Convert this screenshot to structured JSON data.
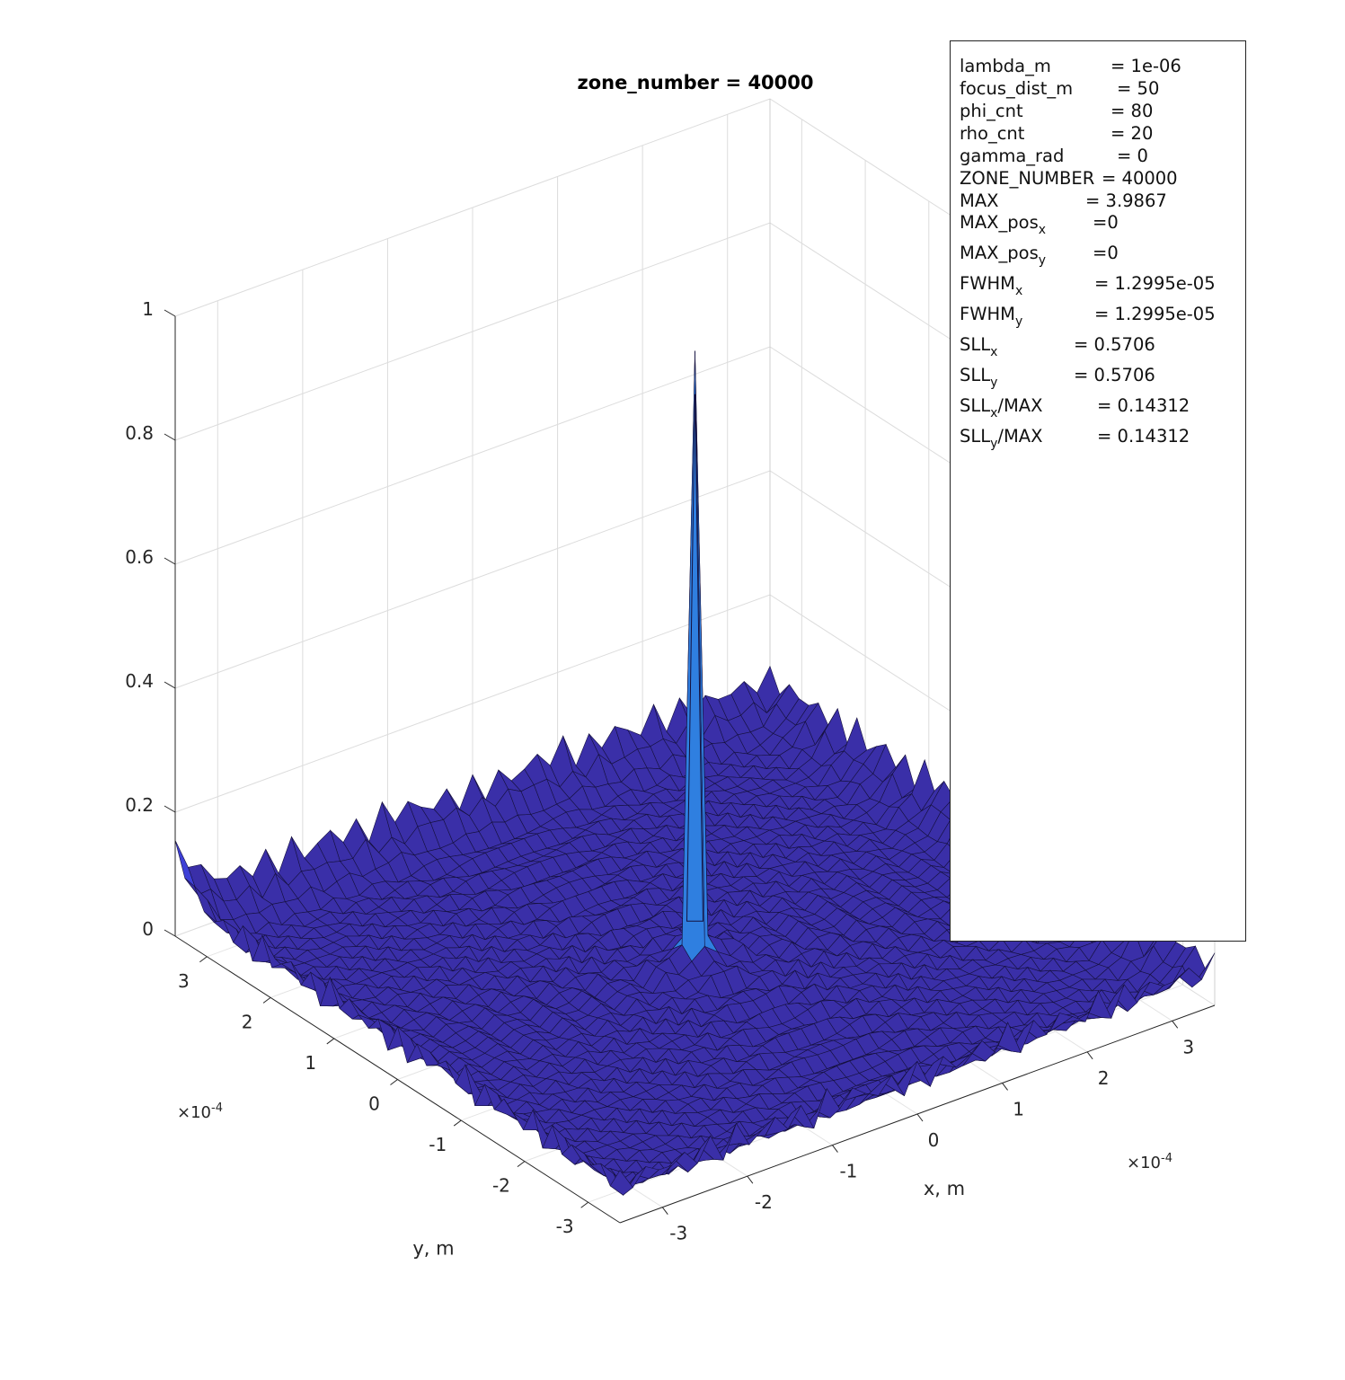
{
  "chart_data": {
    "type": "surface",
    "title": "zone_number = 40000",
    "xlabel": "x, m",
    "ylabel": "y, m",
    "x_range": [
      -0.00035,
      0.00035
    ],
    "y_range": [
      -0.00035,
      0.00035
    ],
    "zlim": [
      0,
      1
    ],
    "x_ticks": [
      "-3",
      "-2",
      "-1",
      "0",
      "1",
      "2",
      "3"
    ],
    "y_ticks": [
      "-3",
      "-2",
      "-1",
      "0",
      "1",
      "2",
      "3"
    ],
    "z_ticks": [
      "0",
      "0.2",
      "0.4",
      "0.6",
      "0.8",
      "1"
    ],
    "x_exponent_label": "×10",
    "x_exponent": "-4",
    "y_exponent_label": "×10",
    "y_exponent": "-4",
    "peak": {
      "x": 0,
      "y": 0,
      "z": 0.93
    },
    "grid": true,
    "surface_color": "#3a2fa8",
    "peak_color": "#2f7fe0"
  },
  "info": [
    {
      "label": "lambda_m",
      "sub": "",
      "rest": "",
      "value": "= 1e-06"
    },
    {
      "label": "focus_dist_m",
      "sub": "",
      "rest": "",
      "value": "= 50"
    },
    {
      "label": "phi_cnt",
      "sub": "",
      "rest": "",
      "value": "= 80"
    },
    {
      "label": "rho_cnt",
      "sub": "",
      "rest": "",
      "value": "= 20"
    },
    {
      "label": "gamma_rad",
      "sub": "",
      "rest": "",
      "value": "= 0"
    },
    {
      "label": "ZONE_NUMBER",
      "sub": "",
      "rest": "",
      "value": "= 40000"
    },
    {
      "label": "MAX",
      "sub": "",
      "rest": "",
      "value": "= 3.9867"
    },
    {
      "label": "MAX_pos",
      "sub": "x",
      "rest": "",
      "value": "=0"
    },
    {
      "label": "MAX_pos",
      "sub": "y",
      "rest": "",
      "value": "=0"
    },
    {
      "label": "FWHM",
      "sub": "x",
      "rest": "",
      "value": "= 1.2995e-05"
    },
    {
      "label": "FWHM",
      "sub": "y",
      "rest": "",
      "value": "= 1.2995e-05"
    },
    {
      "label": "SLL",
      "sub": "x",
      "rest": "",
      "value": "= 0.5706"
    },
    {
      "label": "SLL",
      "sub": "y",
      "rest": "",
      "value": "= 0.5706"
    },
    {
      "label": "SLL",
      "sub": "x",
      "rest": "/MAX",
      "value": "= 0.14312"
    },
    {
      "label": "SLL",
      "sub": "y",
      "rest": "/MAX",
      "value": "= 0.14312"
    }
  ]
}
